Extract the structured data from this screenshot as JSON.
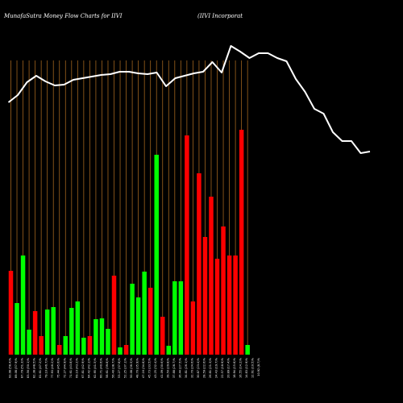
{
  "chart_data": {
    "type": "bar",
    "title": "MunafaSutra  Money Flow  Charts for IIVI",
    "subtitle": "(IIVI Incorporat",
    "bar_colors": {
      "up": "#00ff00",
      "down": "#ff0000"
    },
    "line_color": "#ffffff",
    "grid_color": "#a0641e",
    "background": "#000000",
    "categories": [
      "93.08 (58.4)%",
      "89.08 (57.9)%",
      "87.79 (51.3)%",
      "83.56 (50.1)%",
      "82.38 (48.5)%",
      "81.61 (47.2)%",
      "79.10 (46.7)%",
      "77.93 (46.2)%",
      "75.44 (45.6)%",
      "72.27 (44.9)%",
      "71.61 (43.8)%",
      "69.10 (43.2)%",
      "67.81 (42.9)%",
      "64.42 (42.1)%",
      "62.95 (41.5)%",
      "60.71 (40.6)%",
      "58.61 (39.8)%",
      "56.40 (38.7)%",
      "53.27 (37.8)%",
      "52.25 (37.1)%",
      "50.08 (36.5)%",
      "48.70 (35.9)%",
      "47.16 (34.8)%",
      "45.73 (33.5)%",
      "43.25 (32.4)%",
      "41.09 (30.6)%",
      "39.50 (29.8)%",
      "37.88 (28.7)%",
      "36.44 (27.5)%",
      "34.81 (26.1)%",
      "32.70 (24.6)%",
      "30.87 (23.4)%",
      "28.59 (22.6)%",
      "26.81 (21.3)%",
      "24.43 (19.7)%",
      "22.57 (18.9)%",
      "20.89 (17.4)%",
      "18.94 (15.8)%",
      "16.55 (14.2)%",
      "14.83 (12.9)%",
      "12.61 (10.5)%",
      "10.92 (8.7)%"
    ],
    "bars": [
      {
        "value": 104,
        "dir": "down"
      },
      {
        "value": 64,
        "dir": "up"
      },
      {
        "value": 123,
        "dir": "up"
      },
      {
        "value": 31,
        "dir": "up"
      },
      {
        "value": 54,
        "dir": "down"
      },
      {
        "value": 23,
        "dir": "down"
      },
      {
        "value": 56,
        "dir": "up"
      },
      {
        "value": 59,
        "dir": "up"
      },
      {
        "value": 12,
        "dir": "down"
      },
      {
        "value": 23,
        "dir": "up"
      },
      {
        "value": 58,
        "dir": "up"
      },
      {
        "value": 66,
        "dir": "up"
      },
      {
        "value": 21,
        "dir": "up"
      },
      {
        "value": 23,
        "dir": "down"
      },
      {
        "value": 44,
        "dir": "up"
      },
      {
        "value": 45,
        "dir": "up"
      },
      {
        "value": 32,
        "dir": "up"
      },
      {
        "value": 98,
        "dir": "down"
      },
      {
        "value": 9,
        "dir": "up"
      },
      {
        "value": 12,
        "dir": "down"
      },
      {
        "value": 88,
        "dir": "up"
      },
      {
        "value": 71,
        "dir": "up"
      },
      {
        "value": 103,
        "dir": "up"
      },
      {
        "value": 83,
        "dir": "down"
      },
      {
        "value": 248,
        "dir": "up"
      },
      {
        "value": 47,
        "dir": "down"
      },
      {
        "value": 11,
        "dir": "up"
      },
      {
        "value": 91,
        "dir": "up"
      },
      {
        "value": 91,
        "dir": "up"
      },
      {
        "value": 272,
        "dir": "down"
      },
      {
        "value": 66,
        "dir": "down"
      },
      {
        "value": 225,
        "dir": "down"
      },
      {
        "value": 146,
        "dir": "down"
      },
      {
        "value": 196,
        "dir": "down"
      },
      {
        "value": 119,
        "dir": "down"
      },
      {
        "value": 159,
        "dir": "down"
      },
      {
        "value": 123,
        "dir": "down"
      },
      {
        "value": 123,
        "dir": "down"
      },
      {
        "value": 279,
        "dir": "down"
      },
      {
        "value": 12,
        "dir": "up"
      }
    ],
    "line_values": [
      313,
      322,
      338,
      346,
      339,
      334,
      335,
      341,
      343,
      345,
      347,
      348,
      351,
      351,
      349,
      348,
      350,
      333,
      343,
      346,
      349,
      351,
      363,
      350,
      383,
      376,
      368,
      374,
      374,
      368,
      364,
      342,
      326,
      305,
      299,
      276,
      265,
      265,
      250,
      252
    ],
    "ylim": [
      0,
      420
    ],
    "xlabel": "",
    "ylabel": ""
  }
}
